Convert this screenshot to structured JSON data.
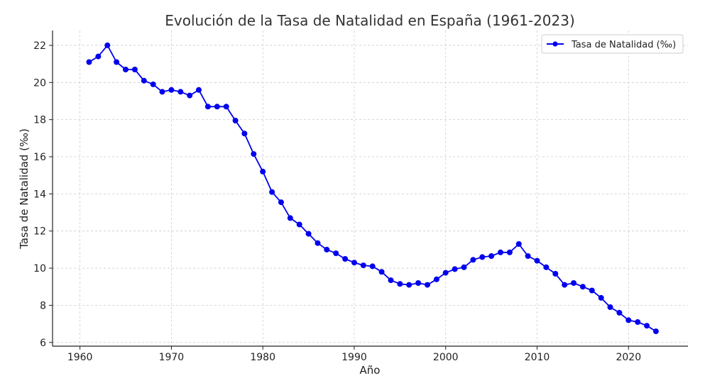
{
  "chart_data": {
    "type": "line",
    "title": "Evolución de la Tasa de Natalidad en España (1961-2023)",
    "xlabel": "Año",
    "ylabel": "Tasa de Natalidad (‰)",
    "xlim": [
      1957,
      2026.5
    ],
    "ylim": [
      5.8,
      22.8
    ],
    "x_ticks": [
      1960,
      1970,
      1980,
      1990,
      2000,
      2010,
      2020
    ],
    "y_ticks": [
      6,
      8,
      10,
      12,
      14,
      16,
      18,
      20,
      22
    ],
    "grid": true,
    "legend_position": "top-right",
    "series": [
      {
        "name": "Tasa de Natalidad (‰)",
        "color": "#0000ee",
        "marker": "circle",
        "x": [
          1961,
          1962,
          1963,
          1964,
          1965,
          1966,
          1967,
          1968,
          1969,
          1970,
          1971,
          1972,
          1973,
          1974,
          1975,
          1976,
          1977,
          1978,
          1979,
          1980,
          1981,
          1982,
          1983,
          1984,
          1985,
          1986,
          1987,
          1988,
          1989,
          1990,
          1991,
          1992,
          1993,
          1994,
          1995,
          1996,
          1997,
          1998,
          1999,
          2000,
          2001,
          2002,
          2003,
          2004,
          2005,
          2006,
          2007,
          2008,
          2009,
          2010,
          2011,
          2012,
          2013,
          2014,
          2015,
          2016,
          2017,
          2018,
          2019,
          2020,
          2021,
          2022,
          2023
        ],
        "values": [
          21.1,
          21.4,
          22.0,
          21.1,
          20.7,
          20.7,
          20.1,
          19.9,
          19.5,
          19.6,
          19.5,
          19.3,
          19.6,
          18.7,
          18.7,
          18.7,
          17.95,
          17.25,
          16.15,
          15.2,
          14.1,
          13.55,
          12.7,
          12.35,
          11.85,
          11.35,
          11.0,
          10.8,
          10.5,
          10.3,
          10.15,
          10.1,
          9.8,
          9.35,
          9.15,
          9.1,
          9.2,
          9.1,
          9.4,
          9.75,
          9.95,
          10.05,
          10.45,
          10.6,
          10.65,
          10.85,
          10.85,
          11.3,
          10.65,
          10.4,
          10.05,
          9.7,
          9.1,
          9.2,
          9.0,
          8.8,
          8.4,
          7.9,
          7.6,
          7.2,
          7.1,
          6.9,
          6.6
        ]
      }
    ]
  }
}
